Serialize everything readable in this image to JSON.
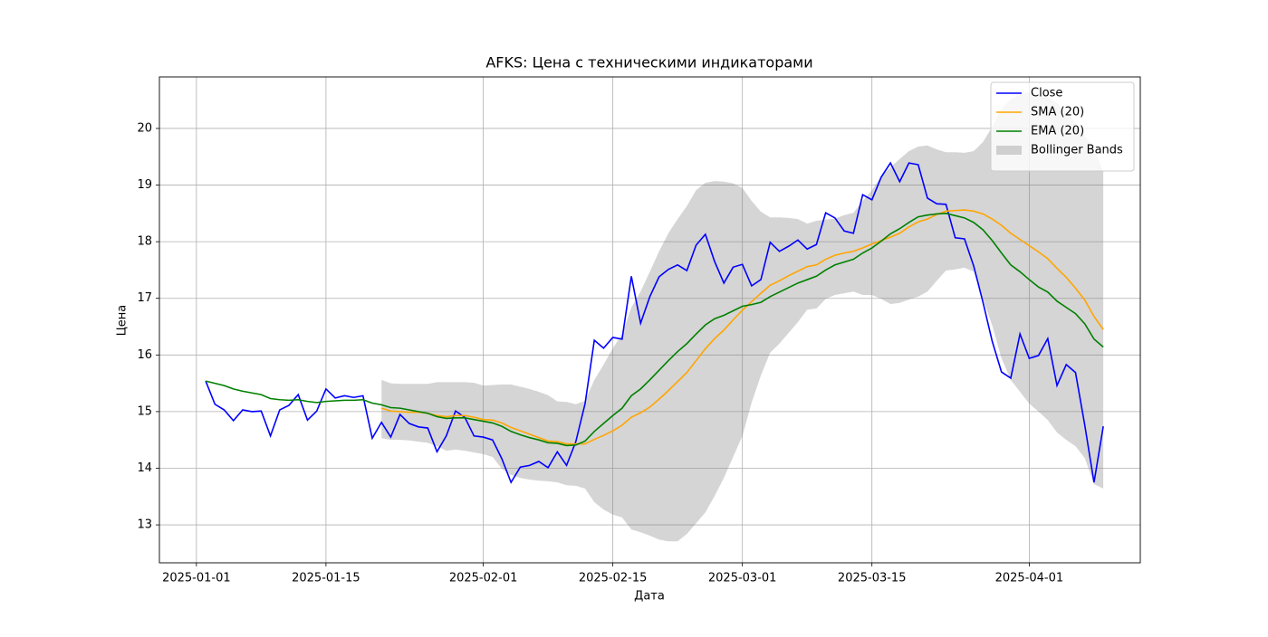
{
  "chart_data": {
    "type": "line",
    "title": "AFKS: Цена с техническими индикаторами",
    "xlabel": "Дата",
    "ylabel": "Цена",
    "x": [
      "2025-01-02",
      "2025-01-03",
      "2025-01-04",
      "2025-01-05",
      "2025-01-06",
      "2025-01-07",
      "2025-01-08",
      "2025-01-09",
      "2025-01-10",
      "2025-01-11",
      "2025-01-12",
      "2025-01-13",
      "2025-01-14",
      "2025-01-15",
      "2025-01-16",
      "2025-01-17",
      "2025-01-18",
      "2025-01-19",
      "2025-01-20",
      "2025-01-21",
      "2025-01-22",
      "2025-01-23",
      "2025-01-24",
      "2025-01-25",
      "2025-01-26",
      "2025-01-27",
      "2025-01-28",
      "2025-01-29",
      "2025-01-30",
      "2025-01-31",
      "2025-02-01",
      "2025-02-02",
      "2025-02-03",
      "2025-02-04",
      "2025-02-05",
      "2025-02-06",
      "2025-02-07",
      "2025-02-08",
      "2025-02-09",
      "2025-02-10",
      "2025-02-11",
      "2025-02-12",
      "2025-02-13",
      "2025-02-14",
      "2025-02-15",
      "2025-02-16",
      "2025-02-17",
      "2025-02-18",
      "2025-02-19",
      "2025-02-20",
      "2025-02-21",
      "2025-02-22",
      "2025-02-23",
      "2025-02-24",
      "2025-02-25",
      "2025-02-26",
      "2025-02-27",
      "2025-02-28",
      "2025-03-01",
      "2025-03-02",
      "2025-03-03",
      "2025-03-04",
      "2025-03-05",
      "2025-03-06",
      "2025-03-07",
      "2025-03-08",
      "2025-03-09",
      "2025-03-10",
      "2025-03-11",
      "2025-03-12",
      "2025-03-13",
      "2025-03-14",
      "2025-03-15",
      "2025-03-16",
      "2025-03-17",
      "2025-03-18",
      "2025-03-19",
      "2025-03-20",
      "2025-03-21",
      "2025-03-22",
      "2025-03-23",
      "2025-03-24",
      "2025-03-25",
      "2025-03-26",
      "2025-03-27",
      "2025-03-28",
      "2025-03-29",
      "2025-03-30",
      "2025-03-31",
      "2025-04-01",
      "2025-04-02",
      "2025-04-03",
      "2025-04-04",
      "2025-04-05",
      "2025-04-06",
      "2025-04-07",
      "2025-04-08",
      "2025-04-09"
    ],
    "series": [
      {
        "name": "Close",
        "color": "#0000ff",
        "values": [
          15.54,
          15.13,
          15.03,
          14.84,
          15.03,
          15.0,
          15.01,
          14.57,
          15.03,
          15.11,
          15.3,
          14.85,
          15.01,
          15.4,
          15.24,
          15.28,
          15.25,
          15.28,
          14.53,
          14.81,
          14.55,
          14.95,
          14.79,
          14.73,
          14.71,
          14.29,
          14.57,
          15.01,
          14.9,
          14.57,
          14.55,
          14.5,
          14.17,
          13.75,
          14.02,
          14.05,
          14.12,
          14.01,
          14.29,
          14.05,
          14.47,
          15.14,
          16.26,
          16.12,
          16.31,
          16.28,
          17.39,
          16.56,
          17.03,
          17.38,
          17.51,
          17.59,
          17.49,
          17.94,
          18.13,
          17.65,
          17.27,
          17.55,
          17.6,
          17.22,
          17.33,
          17.99,
          17.83,
          17.92,
          18.03,
          17.87,
          17.95,
          18.51,
          18.42,
          18.19,
          18.15,
          18.83,
          18.74,
          19.14,
          19.39,
          19.06,
          19.39,
          19.36,
          18.77,
          18.67,
          18.66,
          18.07,
          18.05,
          17.57,
          16.93,
          16.24,
          15.7,
          15.59,
          16.37,
          15.94,
          15.99,
          16.29,
          15.46,
          15.83,
          15.69,
          14.76,
          13.75,
          14.74
        ]
      },
      {
        "name": "SMA (20)",
        "color": "#ffa500",
        "values": [
          null,
          null,
          null,
          null,
          null,
          null,
          null,
          null,
          null,
          null,
          null,
          null,
          null,
          null,
          null,
          null,
          null,
          null,
          null,
          15.06,
          15.01,
          15.0,
          14.99,
          14.99,
          14.97,
          14.93,
          14.91,
          14.93,
          14.93,
          14.9,
          14.86,
          14.85,
          14.8,
          14.72,
          14.66,
          14.6,
          14.54,
          14.48,
          14.47,
          14.43,
          14.43,
          14.43,
          14.51,
          14.58,
          14.66,
          14.76,
          14.9,
          14.98,
          15.08,
          15.22,
          15.37,
          15.53,
          15.69,
          15.9,
          16.11,
          16.29,
          16.44,
          16.62,
          16.79,
          16.94,
          17.09,
          17.23,
          17.31,
          17.4,
          17.48,
          17.56,
          17.59,
          17.69,
          17.76,
          17.8,
          17.83,
          17.89,
          17.96,
          18.02,
          18.08,
          18.15,
          18.26,
          18.35,
          18.4,
          18.48,
          18.54,
          18.55,
          18.56,
          18.54,
          18.49,
          18.4,
          18.29,
          18.15,
          18.04,
          17.93,
          17.82,
          17.7,
          17.53,
          17.37,
          17.18,
          16.97,
          16.68,
          16.45
        ]
      },
      {
        "name": "EMA (20)",
        "color": "#008000",
        "values": [
          15.54,
          15.5,
          15.46,
          15.4,
          15.36,
          15.33,
          15.3,
          15.23,
          15.21,
          15.2,
          15.21,
          15.18,
          15.16,
          15.18,
          15.19,
          15.2,
          15.2,
          15.21,
          15.15,
          15.12,
          15.07,
          15.06,
          15.03,
          15.0,
          14.97,
          14.91,
          14.88,
          14.89,
          14.89,
          14.86,
          14.83,
          14.8,
          14.74,
          14.65,
          14.59,
          14.54,
          14.5,
          14.45,
          14.44,
          14.4,
          14.41,
          14.48,
          14.65,
          14.79,
          14.93,
          15.06,
          15.28,
          15.4,
          15.56,
          15.73,
          15.9,
          16.06,
          16.2,
          16.37,
          16.53,
          16.64,
          16.7,
          16.78,
          16.86,
          16.89,
          16.93,
          17.03,
          17.11,
          17.19,
          17.27,
          17.33,
          17.39,
          17.5,
          17.59,
          17.64,
          17.69,
          17.8,
          17.89,
          18.01,
          18.14,
          18.23,
          18.34,
          18.44,
          18.47,
          18.49,
          18.5,
          18.46,
          18.42,
          18.34,
          18.21,
          18.02,
          17.8,
          17.59,
          17.47,
          17.33,
          17.2,
          17.11,
          16.95,
          16.84,
          16.73,
          16.55,
          16.28,
          16.14
        ]
      }
    ],
    "bands": {
      "name": "Bollinger Bands",
      "color": "#808080",
      "upper": [
        null,
        null,
        null,
        null,
        null,
        null,
        null,
        null,
        null,
        null,
        null,
        null,
        null,
        null,
        null,
        null,
        null,
        null,
        null,
        15.56,
        15.5,
        15.49,
        15.49,
        15.49,
        15.49,
        15.52,
        15.52,
        15.52,
        15.52,
        15.51,
        15.46,
        15.47,
        15.48,
        15.48,
        15.44,
        15.4,
        15.35,
        15.29,
        15.18,
        15.17,
        15.13,
        15.19,
        15.56,
        15.83,
        16.12,
        16.36,
        16.84,
        17.12,
        17.47,
        17.83,
        18.15,
        18.4,
        18.63,
        18.91,
        19.04,
        19.07,
        19.06,
        19.03,
        18.95,
        18.72,
        18.53,
        18.43,
        18.43,
        18.42,
        18.4,
        18.32,
        18.37,
        18.39,
        18.41,
        18.47,
        18.51,
        18.72,
        18.91,
        19.15,
        19.31,
        19.46,
        19.6,
        19.68,
        19.7,
        19.63,
        19.58,
        19.58,
        19.57,
        19.6,
        19.76,
        20.03,
        20.35,
        20.51,
        20.59,
        20.65,
        20.6,
        20.55,
        20.45,
        20.3,
        20.1,
        19.87,
        19.66,
        19.23
      ],
      "lower": [
        null,
        null,
        null,
        null,
        null,
        null,
        null,
        null,
        null,
        null,
        null,
        null,
        null,
        null,
        null,
        null,
        null,
        null,
        null,
        14.53,
        14.5,
        14.5,
        14.49,
        14.47,
        14.45,
        14.39,
        14.31,
        14.33,
        14.31,
        14.28,
        14.25,
        14.2,
        13.99,
        13.88,
        13.83,
        13.8,
        13.78,
        13.77,
        13.75,
        13.7,
        13.69,
        13.64,
        13.4,
        13.27,
        13.18,
        13.13,
        12.92,
        12.87,
        12.81,
        12.74,
        12.71,
        12.71,
        12.84,
        13.03,
        13.22,
        13.51,
        13.83,
        14.2,
        14.57,
        15.16,
        15.64,
        16.04,
        16.2,
        16.39,
        16.58,
        16.8,
        16.82,
        16.99,
        17.06,
        17.09,
        17.12,
        17.06,
        17.06,
        16.99,
        16.9,
        16.92,
        16.98,
        17.03,
        17.12,
        17.31,
        17.49,
        17.51,
        17.54,
        17.47,
        16.99,
        16.52,
        15.94,
        15.56,
        15.35,
        15.14,
        15.0,
        14.85,
        14.63,
        14.5,
        14.39,
        14.18,
        13.72,
        13.64
      ]
    },
    "xlim": [
      "2024-12-28",
      "2025-04-13"
    ],
    "xticks": [
      "2025-01-01",
      "2025-01-15",
      "2025-02-01",
      "2025-02-15",
      "2025-03-01",
      "2025-03-15",
      "2025-04-01"
    ],
    "ylim": [
      12.33,
      20.91
    ],
    "yticks": [
      13,
      14,
      15,
      16,
      17,
      18,
      19,
      20
    ],
    "grid": true,
    "legend": "upper-right"
  }
}
